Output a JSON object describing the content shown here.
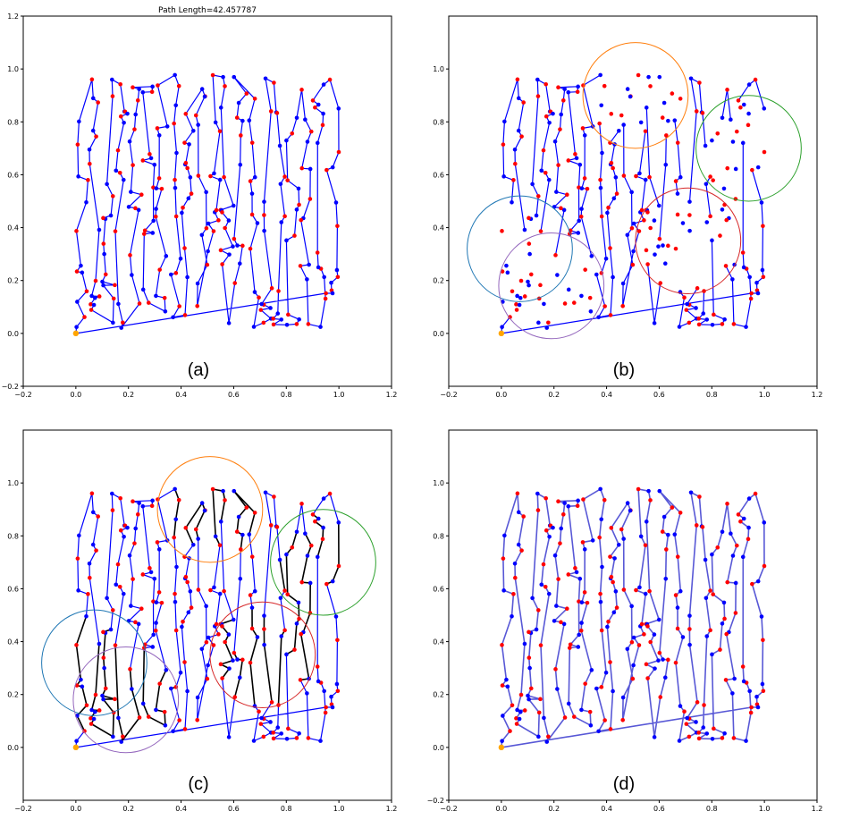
{
  "colors": {
    "route": "#0000ff",
    "route_faded": "#2020c8",
    "cluster_route": "#000000",
    "node_blue": "#0000ff",
    "node_red": "#ff0000",
    "depot": "#ffa500",
    "circle_orange": "#ff7f0e",
    "circle_green": "#2ca02c",
    "circle_blue": "#1f77b4",
    "circle_red": "#d62728",
    "circle_purple": "#9467bd"
  },
  "chart_data": [
    {
      "type": "line",
      "panel": "(a)",
      "title": "Path Length=42.457787",
      "xlim": [
        -0.2,
        1.2
      ],
      "ylim": [
        -0.2,
        1.2
      ],
      "xticks": [
        "−0.2",
        "0.0",
        "0.2",
        "0.4",
        "0.6",
        "0.8",
        "1.0",
        "1.2"
      ],
      "yticks": [
        "−0.2",
        "0.0",
        "0.2",
        "0.4",
        "0.6",
        "0.8",
        "1.0",
        "1.2"
      ],
      "depot": [
        0.0,
        0.0
      ],
      "grid": false,
      "clusters": []
    },
    {
      "type": "line",
      "panel": "(b)",
      "title": "",
      "xlim": [
        -0.2,
        1.2
      ],
      "ylim": [
        -0.2,
        1.2
      ],
      "xticks": [
        "−0.2",
        "0.0",
        "0.2",
        "0.4",
        "0.6",
        "0.8",
        "1.0",
        "1.2"
      ],
      "yticks": [
        "0.0",
        "0.2",
        "0.4",
        "0.6",
        "0.8",
        "1.0"
      ],
      "depot": [
        0.0,
        0.0
      ],
      "grid": false,
      "clusters": [
        {
          "color": "orange",
          "cx": 0.51,
          "cy": 0.9,
          "r": 0.2
        },
        {
          "color": "green",
          "cx": 0.94,
          "cy": 0.7,
          "r": 0.2
        },
        {
          "color": "blue",
          "cx": 0.07,
          "cy": 0.32,
          "r": 0.2
        },
        {
          "color": "red",
          "cx": 0.71,
          "cy": 0.35,
          "r": 0.2
        },
        {
          "color": "purple",
          "cx": 0.19,
          "cy": 0.18,
          "r": 0.2
        }
      ]
    },
    {
      "type": "line",
      "panel": "(c)",
      "title": "",
      "xlim": [
        -0.2,
        1.2
      ],
      "ylim": [
        -0.2,
        1.2
      ],
      "xticks": [
        "−0.2",
        "0.0",
        "0.2",
        "0.4",
        "0.6",
        "0.8",
        "1.0",
        "1.2"
      ],
      "yticks": [
        "0.0",
        "0.2",
        "0.4",
        "0.6",
        "0.8",
        "1.0"
      ],
      "depot": [
        0.0,
        0.0
      ],
      "grid": false,
      "clusters": [
        {
          "color": "orange",
          "cx": 0.51,
          "cy": 0.9,
          "r": 0.2
        },
        {
          "color": "green",
          "cx": 0.94,
          "cy": 0.7,
          "r": 0.2
        },
        {
          "color": "blue",
          "cx": 0.07,
          "cy": 0.32,
          "r": 0.2
        },
        {
          "color": "red",
          "cx": 0.71,
          "cy": 0.35,
          "r": 0.2
        },
        {
          "color": "purple",
          "cx": 0.19,
          "cy": 0.18,
          "r": 0.2
        }
      ]
    },
    {
      "type": "line",
      "panel": "(d)",
      "title": "",
      "xlim": [
        -0.2,
        1.2
      ],
      "ylim": [
        -0.2,
        1.2
      ],
      "xticks": [
        "−0.2",
        "0.0",
        "0.2",
        "0.4",
        "0.6",
        "0.8",
        "1.0",
        "1.2"
      ],
      "yticks": [
        "−0.2",
        "0.0",
        "0.2",
        "0.4",
        "0.6",
        "0.8",
        "1.0"
      ],
      "depot": [
        0.0,
        0.0
      ],
      "grid": false,
      "clusters": []
    }
  ]
}
